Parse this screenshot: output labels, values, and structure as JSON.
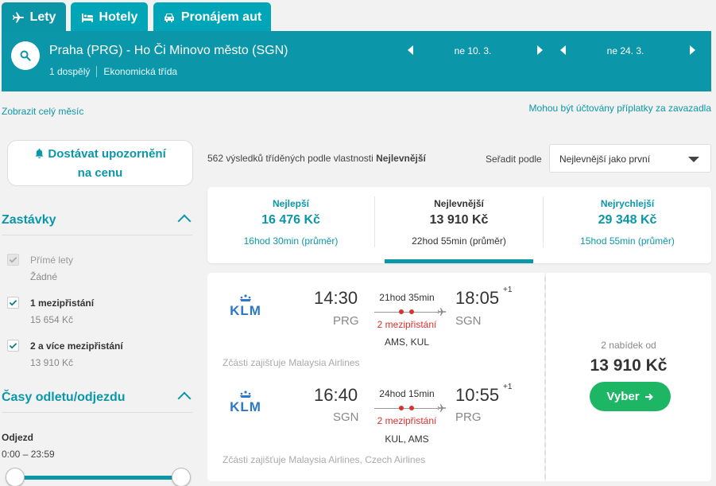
{
  "tabs": [
    {
      "label": "Lety",
      "icon": "plane-icon"
    },
    {
      "label": "Hotely",
      "icon": "bed-icon"
    },
    {
      "label": "Pronájem aut",
      "icon": "car-icon"
    }
  ],
  "search": {
    "route": "Praha (PRG) - Ho Či Minovo město (SGN)",
    "passengers": "1 dospělý",
    "cabin": "Ekonomická třída",
    "depart_date": "ne 10. 3.",
    "return_date": "ne 24. 3."
  },
  "links": {
    "whole_month": "Zobrazit celý měsíc",
    "fees": "Mohou být účtovány příplatky za zavazadla"
  },
  "alert": {
    "line1": "Dostávat upozornění",
    "line2": "na cenu"
  },
  "filters": {
    "stops_title": "Zastávky",
    "stops": [
      {
        "label": "Přímé lety",
        "sub": "Žádné",
        "checked": true,
        "disabled": true
      },
      {
        "label": "1 mezipřistání",
        "sub": "15 654 Kč",
        "checked": true,
        "disabled": false
      },
      {
        "label": "2 a více mezipřistání",
        "sub": "13 910 Kč",
        "checked": true,
        "disabled": false
      }
    ],
    "times_title": "Časy odletu/odjezdu",
    "depart_label": "Odjezd",
    "depart_range": "0:00 – 23:59",
    "slider_min": 0,
    "slider_max": 1
  },
  "results": {
    "count_text": "562 výsledků tříděných podle vlastnosti",
    "sort_by_value": "Nejlevnější",
    "sort_label": "Seřadit podle",
    "sort_selected": "Nejlevnější jako první"
  },
  "sort_tabs": [
    {
      "title": "Nejlepší",
      "price": "16 476 Kč",
      "duration": "16hod 30min (průměr)"
    },
    {
      "title": "Nejlevnější",
      "price": "13 910 Kč",
      "duration": "22hod 55min (průměr)"
    },
    {
      "title": "Nejrychlejší",
      "price": "29 348 Kč",
      "duration": "15hod 55min (průměr)"
    }
  ],
  "itinerary": {
    "airline": "KLM",
    "legs": [
      {
        "dep_time": "14:30",
        "dep_code": "PRG",
        "arr_time": "18:05",
        "arr_sup": "+1",
        "arr_code": "SGN",
        "duration": "21hod 35min",
        "stops": "2 mezipřistání",
        "via": "AMS, KUL",
        "operated": "Zčásti zajišťuje Malaysia Airlines"
      },
      {
        "dep_time": "16:40",
        "dep_code": "SGN",
        "arr_time": "10:55",
        "arr_sup": "+1",
        "arr_code": "PRG",
        "duration": "24hod 15min",
        "stops": "2 mezipřistání",
        "via": "KUL, AMS",
        "operated": "Zčásti zajišťuje Malaysia Airlines, Czech Airlines"
      }
    ],
    "offers": "2 nabídek od",
    "price": "13 910 Kč",
    "select_label": "Vyber"
  },
  "colors": {
    "accent": "#0b97a9",
    "green": "#1cb665",
    "red": "#d9322e"
  }
}
